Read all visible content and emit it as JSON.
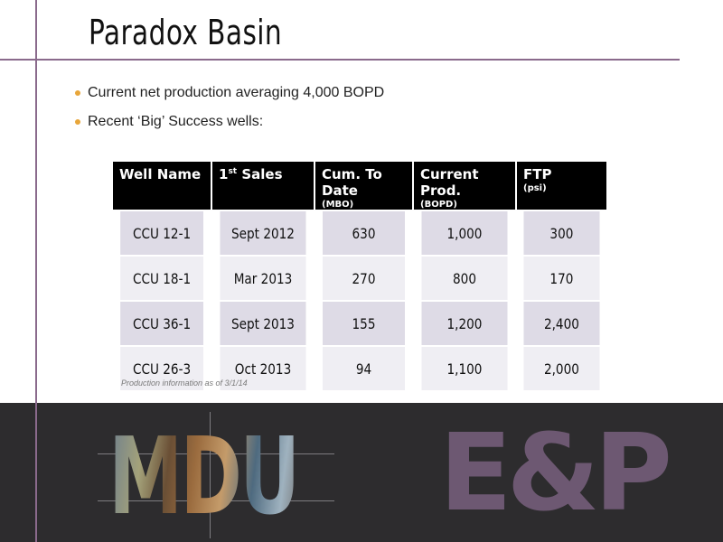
{
  "title": "Paradox Basin",
  "bullets": [
    "Current net production averaging 4,000 BOPD",
    "Recent ‘Big’ Success wells:"
  ],
  "table": {
    "headers": [
      {
        "label": "Well Name",
        "sub": ""
      },
      {
        "label": "1st Sales",
        "sub": ""
      },
      {
        "label": "Cum. To Date",
        "sub": "(MBO)"
      },
      {
        "label": "Current Prod.",
        "sub": "(BOPD)"
      },
      {
        "label": "FTP",
        "sub": "(psi)"
      }
    ],
    "first_sales_label": "1",
    "first_sales_sup": "st",
    "first_sales_rest": " Sales",
    "rows": [
      [
        "CCU 12-1",
        "Sept 2012",
        "630",
        "1,000",
        "300"
      ],
      [
        "CCU 18-1",
        "Mar 2013",
        "270",
        "800",
        "170"
      ],
      [
        "CCU 36-1",
        "Sept 2013",
        "155",
        "1,200",
        "2,400"
      ],
      [
        "CCU 26-3",
        "Oct 2013",
        "94",
        "1,100",
        "2,000"
      ]
    ]
  },
  "note": "Production information as of 3/1/14",
  "logo": {
    "left_text": "MDU",
    "right_text": "E&P"
  },
  "colors": {
    "accent_line": "#8a6a8c",
    "bullet": "#e8a63a",
    "header_bg": "#000000",
    "row_odd": "#dedbe6",
    "row_even": "#efeef3",
    "footer_bg": "#2d2c2e",
    "ep_color": "#6d5872"
  }
}
